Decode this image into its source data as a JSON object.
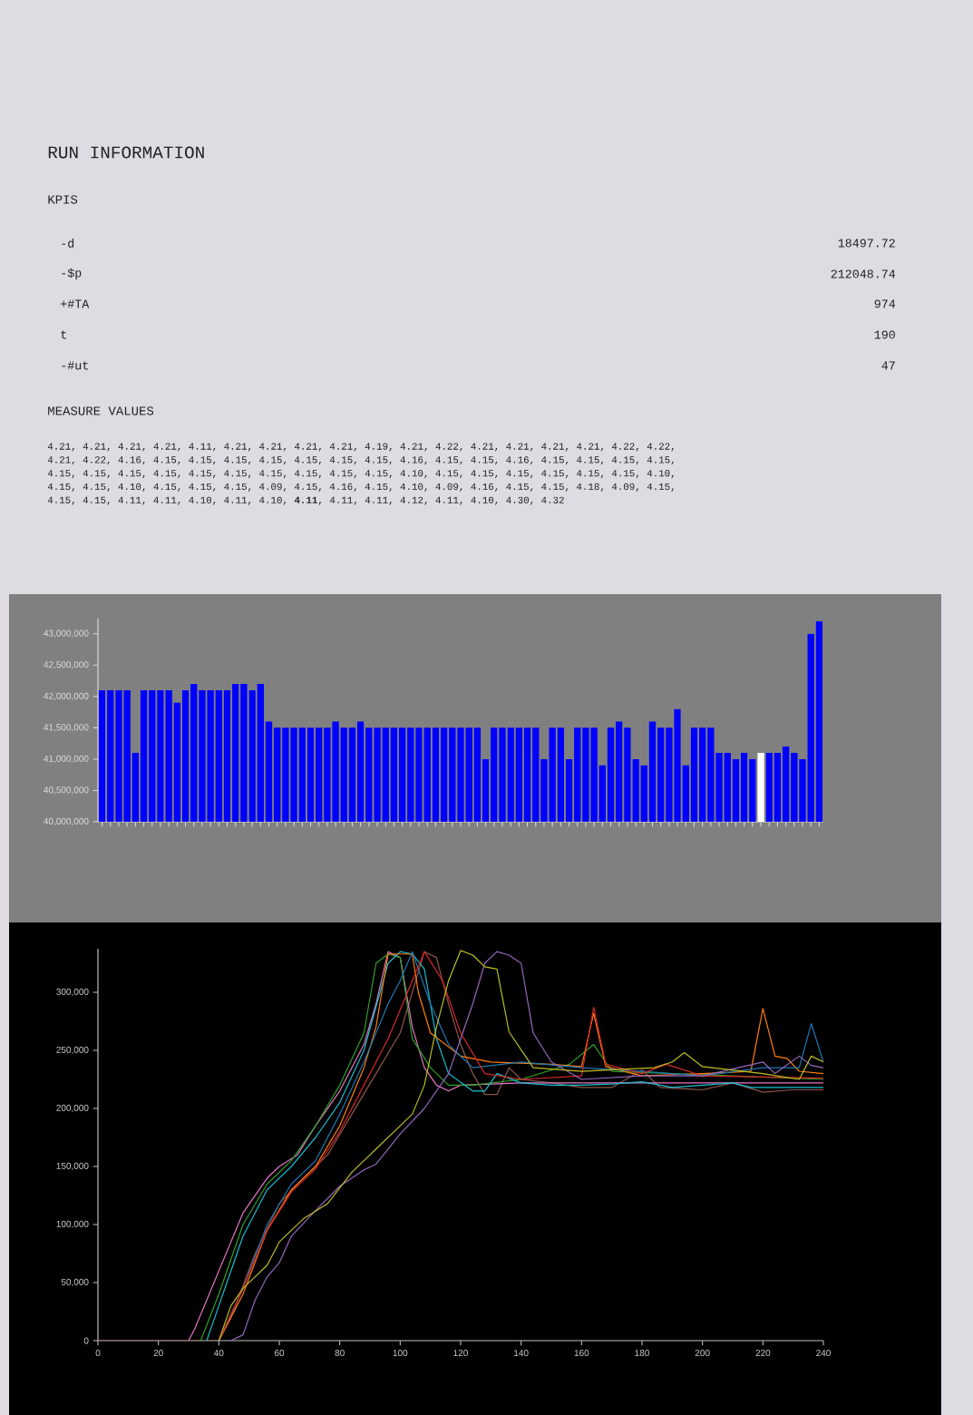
{
  "chart_data": [
    {
      "type": "other",
      "title": "RUN INFORMATION",
      "annotations": [
        "KPIS",
        "-d",
        "18497.72",
        "-$p",
        "212048.74",
        "+#TA",
        "974",
        "t",
        "190",
        "-#ut",
        "47",
        "MEASURE VALUES",
        "4.21, 4.21, 4.21, 4.21, 4.11, 4.21, 4.21, 4.21, 4.21, 4.19, 4.21, 4.22, 4.21, 4.21, 4.21, 4.21, 4.22, 4.22,",
        "4.21, 4.22, 4.16, 4.15, 4.15, 4.15, 4.15, 4.15, 4.15, 4.15, 4.16, 4.15, 4.15, 4.16, 4.15, 4.15, 4.15, 4.15,",
        "4.15, 4.15, 4.15, 4.15, 4.15, 4.15, 4.15, 4.15, 4.15, 4.15, 4.10, 4.15, 4.15, 4.15, 4.15, 4.15, 4.15, 4.10,",
        "4.15, 4.15, 4.10, 4.15, 4.15, 4.15, 4.09, 4.15, 4.16, 4.15, 4.10, 4.09, 4.16, 4.15, 4.15, 4.18, 4.09, 4.15,",
        "4.15, 4.15, 4.11, 4.11, 4.10, 4.11, 4.10, **4.11**, 4.11, 4.11, 4.12, 4.11, 4.10, 4.30, 4.32"
      ]
    },
    {
      "type": "bar",
      "tick_labels": "y",
      "categories": [
        null,
        null,
        null,
        null,
        null,
        null,
        null,
        null,
        null,
        null,
        null,
        null,
        null,
        null,
        null,
        null,
        null,
        null,
        null,
        null,
        null,
        null,
        null,
        null,
        null,
        null,
        null,
        null,
        null,
        null,
        null,
        null,
        null,
        null,
        null,
        null,
        null,
        null,
        null,
        null,
        null,
        null,
        null,
        null,
        null,
        null,
        null,
        null,
        null,
        null,
        null,
        null,
        null,
        null,
        null,
        null,
        null,
        null,
        null,
        null,
        null,
        null,
        null,
        null,
        null,
        null,
        null,
        null,
        null,
        null,
        null,
        null,
        null,
        null,
        null,
        null,
        null,
        null,
        null,
        null,
        null,
        null,
        null,
        null,
        null,
        null,
        null
      ],
      "values": [
        42100000,
        42100000,
        42100000,
        42100000,
        41100000,
        42100000,
        42100000,
        42100000,
        42100000,
        41900000,
        42100000,
        42200000,
        42100000,
        42100000,
        42100000,
        42100000,
        42200000,
        42200000,
        42100000,
        42200000,
        41600000,
        41500000,
        41500000,
        41500000,
        41500000,
        41500000,
        41500000,
        41500000,
        41600000,
        41500000,
        41500000,
        41600000,
        41500000,
        41500000,
        41500000,
        41500000,
        41500000,
        41500000,
        41500000,
        41500000,
        41500000,
        41500000,
        41500000,
        41500000,
        41500000,
        41500000,
        41000000,
        41500000,
        41500000,
        41500000,
        41500000,
        41500000,
        41500000,
        41000000,
        41500000,
        41500000,
        41000000,
        41500000,
        41500000,
        41500000,
        40900000,
        41500000,
        41600000,
        41500000,
        41000000,
        40900000,
        41600000,
        41500000,
        41500000,
        41800000,
        40900000,
        41500000,
        41500000,
        41500000,
        41100000,
        41100000,
        41000000,
        41100000,
        41000000,
        41100000,
        41100000,
        41100000,
        41200000,
        41100000,
        41000000,
        43000000,
        43200000
      ],
      "colors": [
        "#0000ff",
        "#0000ff",
        "#0000ff",
        "#0000ff",
        "#0000ff",
        "#0000ff",
        "#0000ff",
        "#0000ff",
        "#0000ff",
        "#0000ff",
        "#0000ff",
        "#0000ff",
        "#0000ff",
        "#0000ff",
        "#0000ff",
        "#0000ff",
        "#0000ff",
        "#0000ff",
        "#0000ff",
        "#0000ff",
        "#0000ff",
        "#0000ff",
        "#0000ff",
        "#0000ff",
        "#0000ff",
        "#0000ff",
        "#0000ff",
        "#0000ff",
        "#0000ff",
        "#0000ff",
        "#0000ff",
        "#0000ff",
        "#0000ff",
        "#0000ff",
        "#0000ff",
        "#0000ff",
        "#0000ff",
        "#0000ff",
        "#0000ff",
        "#0000ff",
        "#0000ff",
        "#0000ff",
        "#0000ff",
        "#0000ff",
        "#0000ff",
        "#0000ff",
        "#0000ff",
        "#0000ff",
        "#0000ff",
        "#0000ff",
        "#0000ff",
        "#0000ff",
        "#0000ff",
        "#0000ff",
        "#0000ff",
        "#0000ff",
        "#0000ff",
        "#0000ff",
        "#0000ff",
        "#0000ff",
        "#0000ff",
        "#0000ff",
        "#0000ff",
        "#0000ff",
        "#0000ff",
        "#0000ff",
        "#0000ff",
        "#0000ff",
        "#0000ff",
        "#0000ff",
        "#0000ff",
        "#0000ff",
        "#0000ff",
        "#0000ff",
        "#0000ff",
        "#0000ff",
        "#0000ff",
        "#0000ff",
        "#0000ff",
        "#ffffff",
        "#0000ff",
        "#0000ff",
        "#0000ff",
        "#0000ff",
        "#0000ff",
        "#0000ff",
        "#0000ff"
      ],
      "ylim": [
        40000000,
        43250000
      ],
      "yticks": [
        {
          "value": 40000000,
          "label": "40,000,000"
        },
        {
          "value": 40500000,
          "label": "40,500,000"
        },
        {
          "value": 41000000,
          "label": "41,000,000"
        },
        {
          "value": 41500000,
          "label": "41,500,000"
        },
        {
          "value": 42000000,
          "label": "42,000,000"
        },
        {
          "value": 42500000,
          "label": "42,500,000"
        },
        {
          "value": 43000000,
          "label": "43,000,000"
        }
      ]
    },
    {
      "type": "line",
      "xlim": [
        0,
        240
      ],
      "ylim": [
        0,
        337500
      ],
      "xticks": [
        0,
        20,
        40,
        60,
        80,
        100,
        120,
        140,
        160,
        180,
        200,
        220,
        240
      ],
      "yticks": [
        0,
        {
          "value": 50000,
          "label": "50,000"
        },
        {
          "value": 100000,
          "label": "100,000"
        },
        {
          "value": 150000,
          "label": "150,000"
        },
        {
          "value": 200000,
          "label": "200,000"
        },
        {
          "value": 250000,
          "label": "250,000"
        },
        {
          "value": 300000,
          "label": "300,000"
        }
      ],
      "series": [
        {
          "color": "#8c564b",
          "x": [
            0,
            40,
            44,
            52,
            60,
            68,
            76,
            84,
            92,
            100,
            104,
            108,
            112,
            116,
            120,
            124,
            128,
            132,
            136,
            140,
            150,
            160,
            170,
            180,
            186,
            200,
            210,
            220,
            230,
            240
          ],
          "values": [
            0,
            0,
            20000,
            75000,
            118000,
            140000,
            160000,
            195000,
            230000,
            265000,
            300000,
            335000,
            330000,
            290000,
            255000,
            230000,
            212000,
            212000,
            235000,
            225000,
            222000,
            218000,
            218000,
            233000,
            218000,
            216000,
            222000,
            214000,
            216000,
            216000
          ]
        },
        {
          "color": "#e377c2",
          "x": [
            30,
            32,
            40,
            48,
            56,
            60,
            66,
            72,
            80,
            88,
            92,
            96,
            100,
            104,
            108,
            112,
            116,
            120,
            140,
            160,
            180,
            200,
            220,
            240
          ],
          "values": [
            0,
            10000,
            60000,
            110000,
            140000,
            150000,
            160000,
            185000,
            215000,
            255000,
            290000,
            335000,
            330000,
            270000,
            235000,
            220000,
            215000,
            220000,
            222000,
            222000,
            222000,
            222000,
            222000,
            222000
          ]
        },
        {
          "color": "#2ca02c",
          "x": [
            34,
            40,
            48,
            56,
            64,
            72,
            80,
            88,
            92,
            96,
            100,
            104,
            110,
            116,
            124,
            140,
            156,
            164,
            170,
            190,
            240
          ],
          "values": [
            0,
            40000,
            100000,
            135000,
            155000,
            185000,
            220000,
            265000,
            325000,
            333000,
            330000,
            260000,
            235000,
            220000,
            220000,
            225000,
            238000,
            255000,
            232000,
            230000,
            225000
          ]
        },
        {
          "color": "#17becf",
          "x": [
            36,
            40,
            48,
            56,
            64,
            72,
            80,
            88,
            96,
            100,
            104,
            108,
            112,
            116,
            124,
            128,
            132,
            140,
            150,
            160,
            170,
            180,
            190,
            210,
            216,
            240
          ],
          "values": [
            0,
            30000,
            90000,
            130000,
            150000,
            175000,
            205000,
            250000,
            325000,
            335000,
            333000,
            320000,
            260000,
            230000,
            215000,
            215000,
            230000,
            222000,
            220000,
            220000,
            221000,
            223000,
            218000,
            222000,
            218000,
            218000
          ]
        },
        {
          "color": "#ff7f0e",
          "x": [
            40,
            48,
            56,
            64,
            72,
            80,
            88,
            92,
            96,
            104,
            106,
            110,
            120,
            130,
            150,
            160,
            164,
            168,
            180,
            200,
            216,
            220,
            224,
            228,
            232,
            240
          ],
          "values": [
            0,
            40000,
            95000,
            130000,
            150000,
            185000,
            235000,
            270000,
            333000,
            333000,
            300000,
            265000,
            245000,
            240000,
            238000,
            236000,
            282000,
            236000,
            228000,
            230000,
            232000,
            286000,
            245000,
            243000,
            232000,
            230000
          ]
        },
        {
          "color": "#1f77b4",
          "x": [
            40,
            48,
            56,
            64,
            72,
            80,
            88,
            96,
            100,
            104,
            110,
            116,
            124,
            140,
            160,
            180,
            200,
            220,
            232,
            236,
            240
          ],
          "values": [
            0,
            45000,
            100000,
            135000,
            155000,
            195000,
            240000,
            290000,
            310000,
            335000,
            290000,
            255000,
            235000,
            240000,
            235000,
            232000,
            228000,
            235000,
            235000,
            273000,
            240000
          ]
        },
        {
          "color": "#d62728",
          "x": [
            40,
            48,
            56,
            64,
            72,
            80,
            88,
            96,
            104,
            108,
            114,
            120,
            128,
            140,
            160,
            164,
            168,
            180,
            188,
            200,
            240
          ],
          "values": [
            0,
            45000,
            95000,
            128000,
            148000,
            180000,
            220000,
            260000,
            310000,
            335000,
            310000,
            265000,
            230000,
            225000,
            228000,
            287000,
            238000,
            230000,
            238000,
            228000,
            226000
          ]
        },
        {
          "color": "#9467bd",
          "x": [
            44,
            48,
            52,
            56,
            60,
            64,
            72,
            80,
            88,
            92,
            100,
            108,
            116,
            120,
            124,
            128,
            132,
            136,
            140,
            144,
            150,
            160,
            180,
            200,
            220,
            224,
            232,
            236,
            240
          ],
          "values": [
            0,
            5000,
            35000,
            55000,
            67000,
            90000,
            112000,
            133000,
            147000,
            152000,
            178000,
            200000,
            230000,
            260000,
            290000,
            325000,
            335000,
            332000,
            325000,
            265000,
            240000,
            225000,
            228000,
            228000,
            240000,
            230000,
            245000,
            237000,
            235000
          ]
        },
        {
          "color": "#bcbd22",
          "x": [
            40,
            44,
            48,
            52,
            56,
            60,
            68,
            76,
            84,
            92,
            100,
            104,
            108,
            112,
            116,
            120,
            124,
            128,
            132,
            136,
            144,
            160,
            184,
            190,
            194,
            200,
            220,
            232,
            236,
            240
          ],
          "values": [
            0,
            30000,
            45000,
            55000,
            65000,
            85000,
            105000,
            118000,
            145000,
            165000,
            185000,
            195000,
            220000,
            270000,
            310000,
            336000,
            332000,
            322000,
            320000,
            266000,
            235000,
            232000,
            235000,
            240000,
            248000,
            236000,
            230000,
            225000,
            245000,
            240000
          ]
        }
      ]
    }
  ]
}
